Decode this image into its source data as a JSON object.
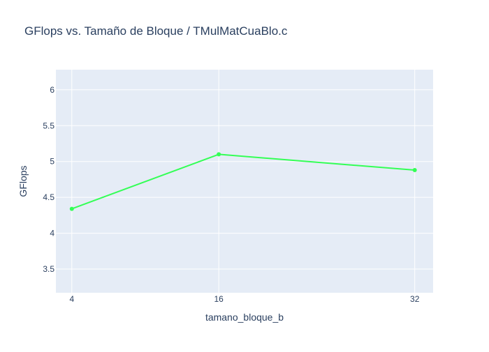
{
  "chart_data": {
    "type": "line",
    "title": "GFlops vs. Tamaño de Bloque / TMulMatCuaBlo.c",
    "xlabel": "tamano_bloque_b",
    "ylabel": "GFlops",
    "x": [
      4,
      16,
      32
    ],
    "series": [
      {
        "values": [
          4.34,
          5.1,
          4.88
        ],
        "color": "#33ff55"
      }
    ],
    "xlim": [
      2.7,
      33.5
    ],
    "ylim": [
      3.17,
      6.28
    ],
    "x_ticks": [
      "4",
      "16",
      "32"
    ],
    "y_ticks": [
      "3.5",
      "4",
      "4.5",
      "5",
      "5.5",
      "6"
    ],
    "grid": true,
    "plot_background": "#e5ecf6",
    "grid_color": "#ffffff",
    "text_color": "#2a3f5f"
  }
}
